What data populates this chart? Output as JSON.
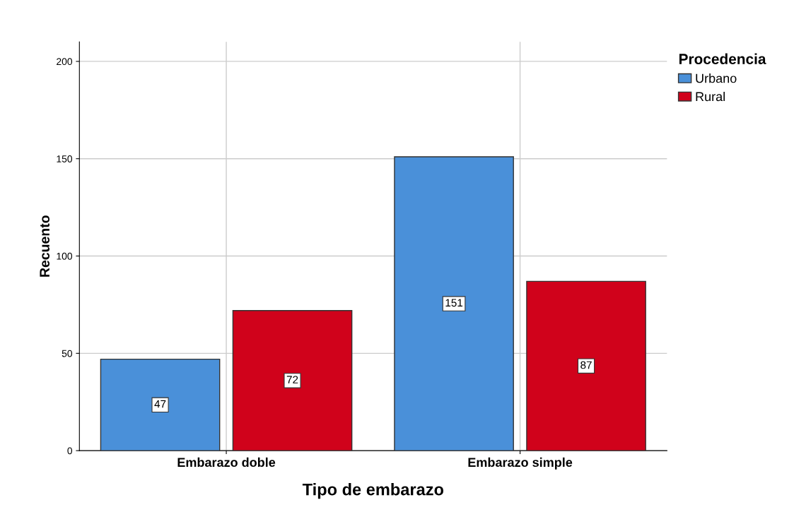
{
  "chart_data": {
    "type": "bar",
    "xlabel": "Tipo de embarazo",
    "ylabel": "Recuento",
    "legend_title": "Procedencia",
    "categories": [
      "Embarazo doble",
      "Embarazo simple"
    ],
    "series": [
      {
        "name": "Urbano",
        "color": "#4a90d9",
        "values": [
          47,
          151
        ]
      },
      {
        "name": "Rural",
        "color": "#d0021b",
        "values": [
          72,
          87
        ]
      }
    ],
    "ylim": [
      0,
      210
    ],
    "yticks": [
      0,
      50,
      100,
      150,
      200
    ],
    "grid": true,
    "legend": "top right",
    "data_labels": true
  }
}
